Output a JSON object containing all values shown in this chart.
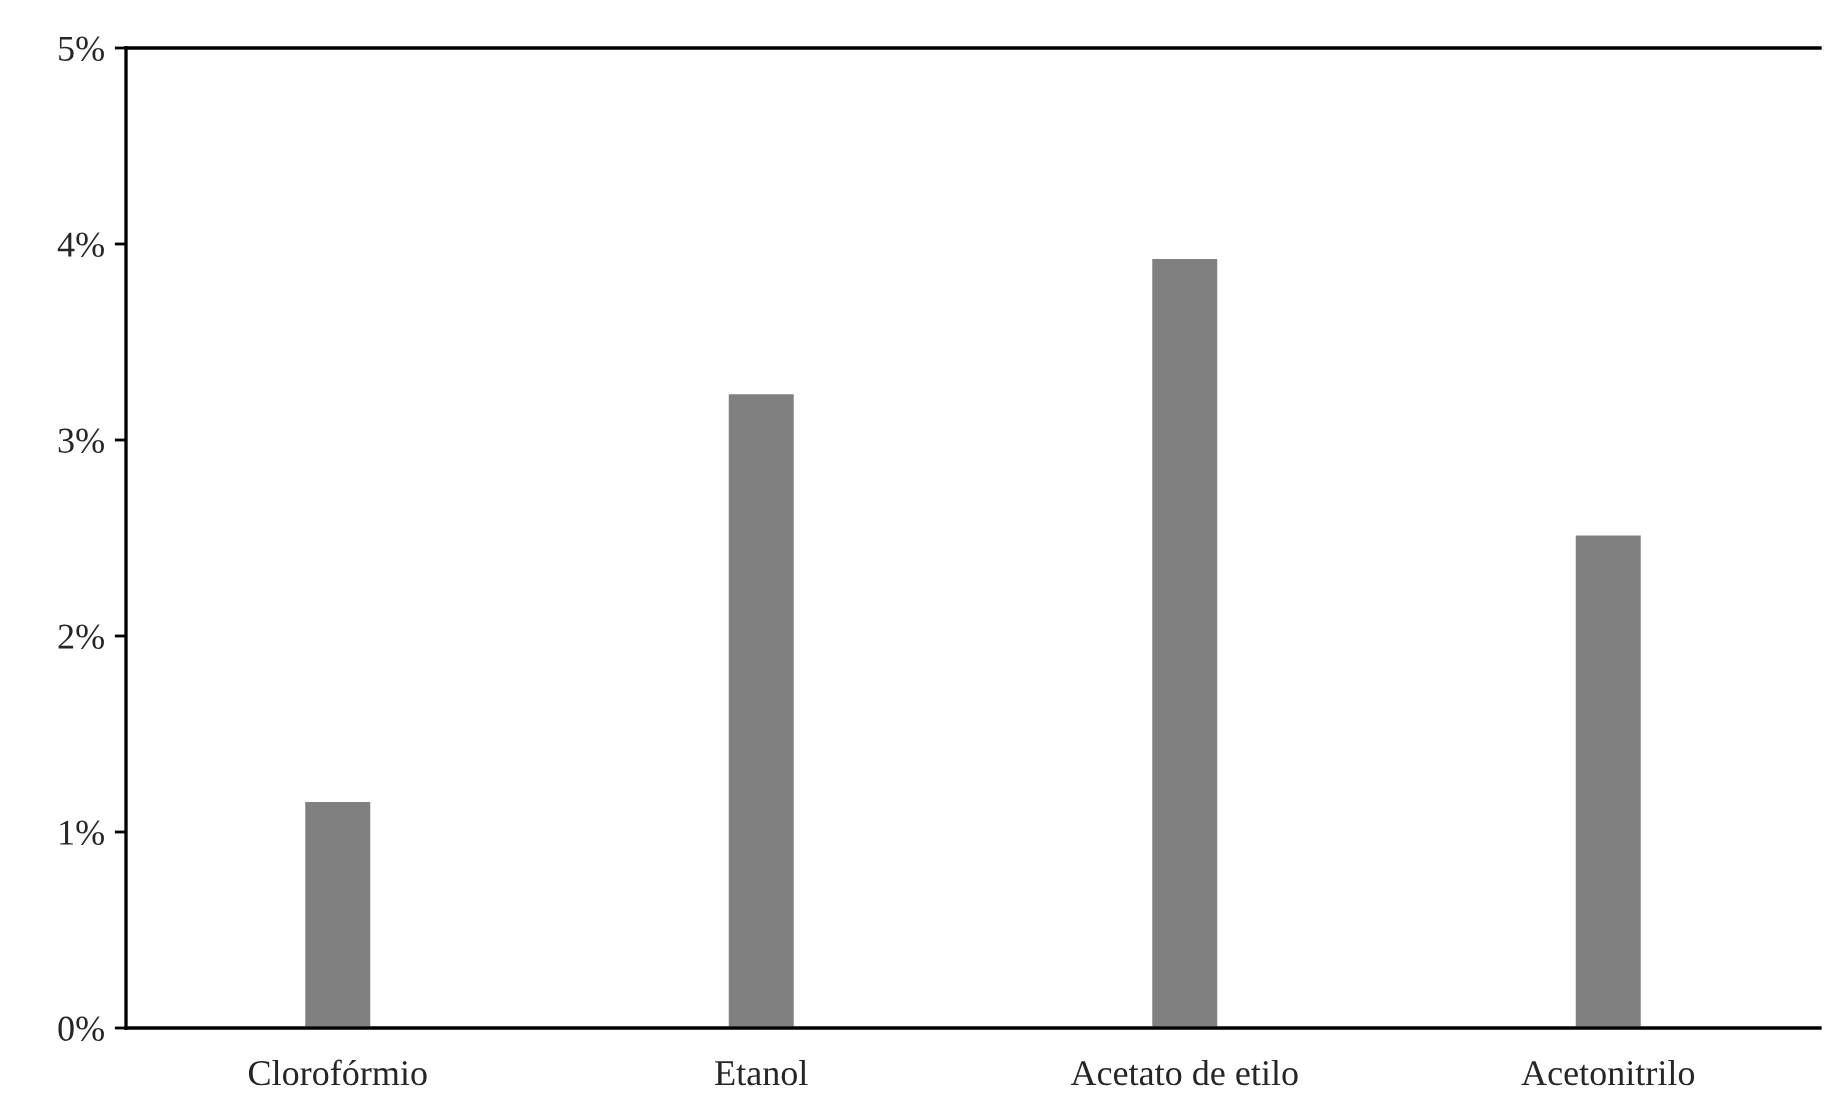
{
  "chart_data": {
    "type": "bar",
    "categories": [
      "Clorofórmio",
      "Etanol",
      "Acetato de etilo",
      "Acetonitrilo"
    ],
    "values": [
      1.16,
      3.24,
      3.93,
      2.52
    ],
    "color": "#808080",
    "ylim": [
      0,
      5
    ],
    "yticks": [
      {
        "value": 0,
        "label": "0%"
      },
      {
        "value": 1,
        "label": "1%"
      },
      {
        "value": 2,
        "label": "2%"
      },
      {
        "value": 3,
        "label": "3%"
      },
      {
        "value": 4,
        "label": "4%"
      },
      {
        "value": 5,
        "label": "5%"
      }
    ],
    "grid": false
  }
}
